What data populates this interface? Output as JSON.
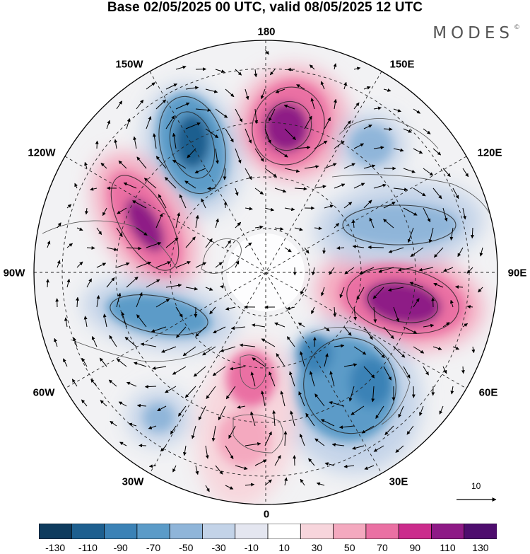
{
  "header": {
    "title": "Base 02/05/2025 00 UTC, valid 08/05/2025 12 UTC",
    "brand": "MODES",
    "brand_mark": "©"
  },
  "map": {
    "projection": "polar-stereographic-north",
    "longitude_labels": [
      "180",
      "150E",
      "120E",
      "90E",
      "60E",
      "30E",
      "0",
      "30W",
      "60W",
      "90W",
      "120W",
      "150W"
    ],
    "vector_scale_label": "10"
  },
  "colorbar": {
    "ticks": [
      "-130",
      "-110",
      "-90",
      "-70",
      "-50",
      "-30",
      "-10",
      "10",
      "30",
      "50",
      "70",
      "90",
      "110",
      "130"
    ],
    "colors": [
      "#0e3b5e",
      "#1d5f8f",
      "#3b82b6",
      "#5b9bc8",
      "#8fb5d9",
      "#c3d3e8",
      "#e4e6f0",
      "#ffffff",
      "#f7d5dc",
      "#f4a9bf",
      "#ea70a3",
      "#cb2b8c",
      "#8e1a86",
      "#4e0d6e"
    ]
  }
}
